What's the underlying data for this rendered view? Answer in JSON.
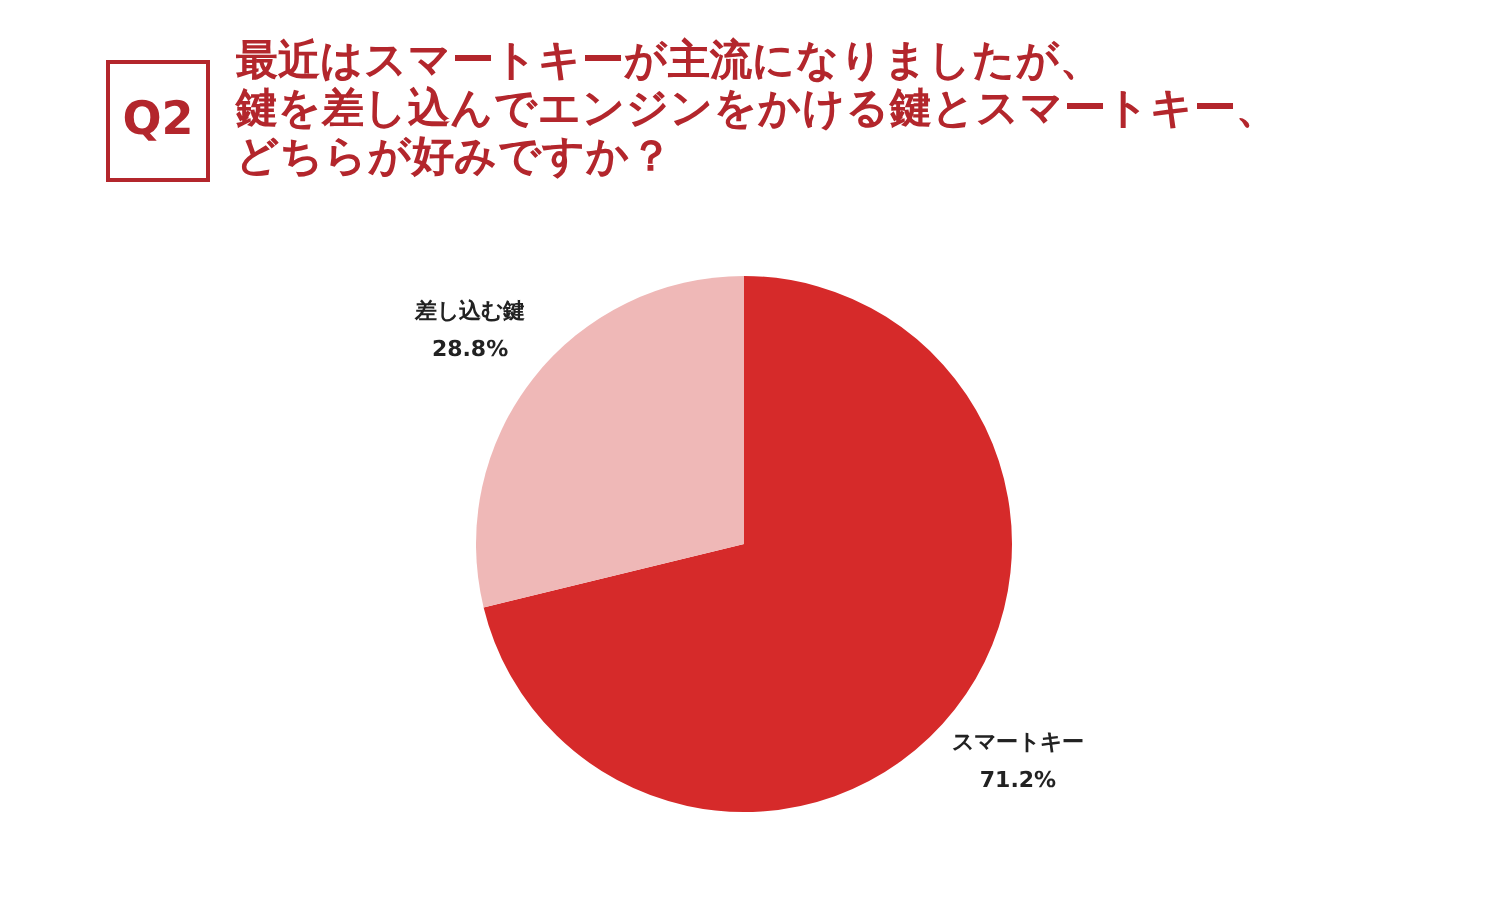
{
  "chart_data": {
    "type": "pie",
    "title": "最近はスマートキーが主流になりましたが、鍵を差し込んでエンジンをかける鍵とスマートキー、どちらが好みですか？",
    "annotations": [
      "Q2"
    ],
    "categories": [
      "スマートキー",
      "差し込む鍵"
    ],
    "values": [
      71.2,
      28.8
    ],
    "colors": [
      "#d62a2a",
      "#efb8b7"
    ],
    "value_labels": [
      "71.2%",
      "28.8%"
    ],
    "legend": false
  }
}
